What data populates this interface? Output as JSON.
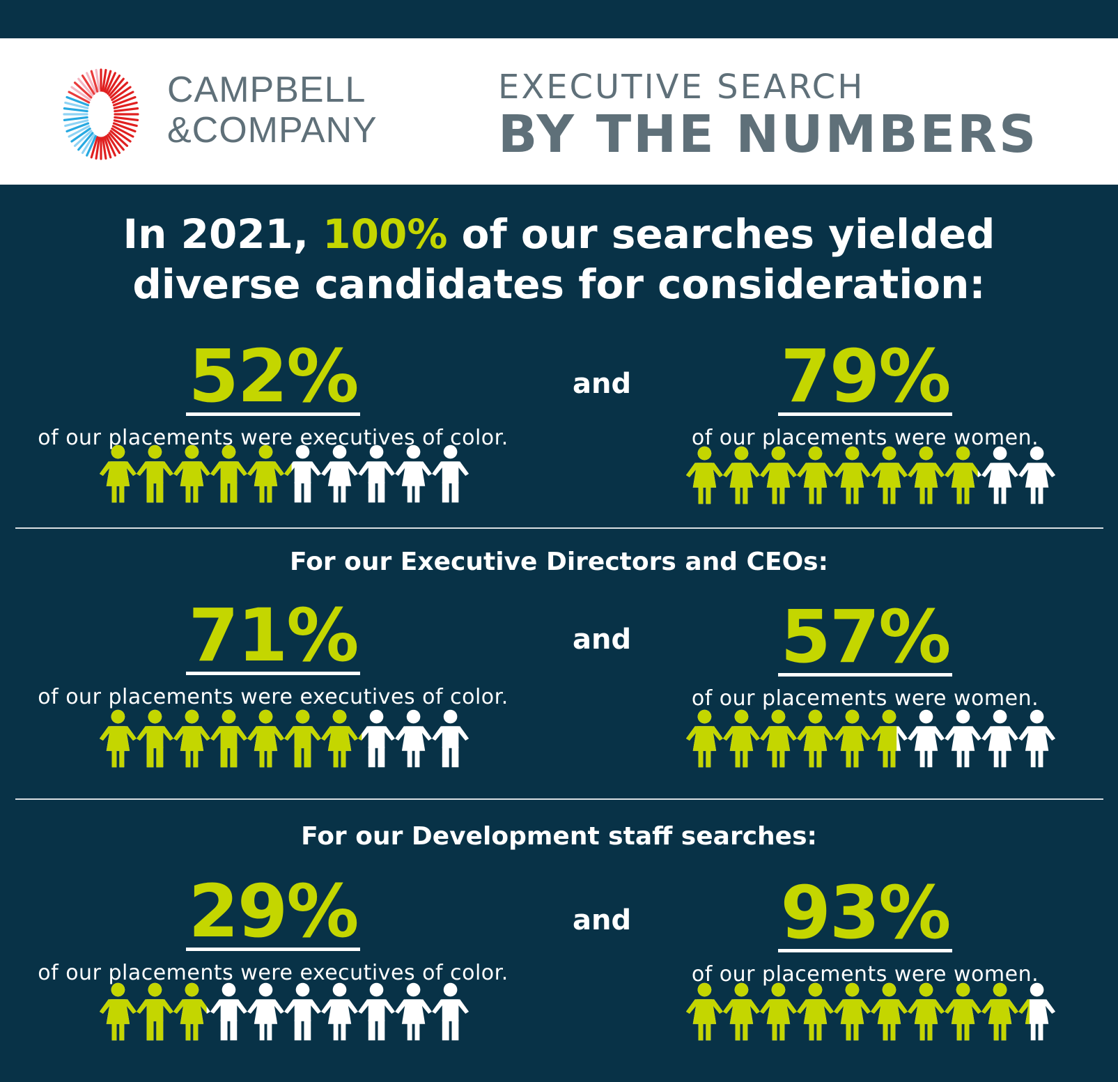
{
  "brand": {
    "line1": "CAMPBELL",
    "line2": "&COMPANY"
  },
  "title": {
    "line1": "EXECUTIVE SEARCH",
    "line2": "BY THE NUMBERS"
  },
  "headline": {
    "before": "In 2021, ",
    "highlight": "100%",
    "after": " of our searches yielded",
    "line2": "diverse candidates for consideration:"
  },
  "connector": "and",
  "colors": {
    "background": "#083247",
    "accent": "#c4d600",
    "header_text": "#5f7079",
    "white": "#ffffff"
  },
  "sections": [
    {
      "title": "",
      "color": {
        "value": "52%",
        "percent": 52,
        "caption": "of our placements were executives of color.",
        "icon": "person-group-icon"
      },
      "women": {
        "value": "79%",
        "percent": 79,
        "caption": "of our placements were women.",
        "icon": "woman-group-icon"
      }
    },
    {
      "title": "For our Executive Directors and CEOs:",
      "color": {
        "value": "71%",
        "percent": 71,
        "caption": "of our placements were executives of color.",
        "icon": "person-group-icon"
      },
      "women": {
        "value": "57%",
        "percent": 57,
        "caption": "of our placements were women.",
        "icon": "woman-group-icon"
      }
    },
    {
      "title": "For our Development staff searches:",
      "color": {
        "value": "29%",
        "percent": 29,
        "caption": "of our placements were executives of color.",
        "icon": "person-group-icon"
      },
      "women": {
        "value": "93%",
        "percent": 93,
        "caption": "of our placements were women.",
        "icon": "woman-group-icon"
      }
    }
  ]
}
